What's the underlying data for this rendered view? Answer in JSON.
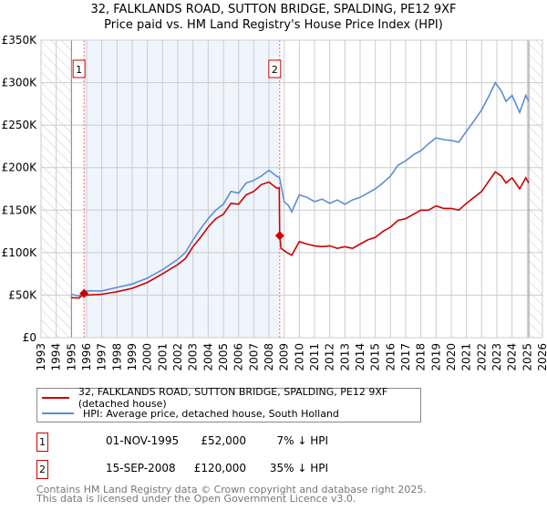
{
  "chart_data": {
    "type": "line",
    "title": "32, FALKLANDS ROAD, SUTTON BRIDGE, SPALDING, PE12 9XF",
    "subtitle": "Price paid vs. HM Land Registry's House Price Index (HPI)",
    "xlim": [
      1993,
      2026
    ],
    "ylim": [
      0,
      350000
    ],
    "x_ticks": [
      "1993",
      "1994",
      "1995",
      "1996",
      "1997",
      "1998",
      "1999",
      "2000",
      "2001",
      "2002",
      "2003",
      "2004",
      "2005",
      "2006",
      "2007",
      "2008",
      "2009",
      "2010",
      "2011",
      "2012",
      "2013",
      "2014",
      "2015",
      "2016",
      "2017",
      "2018",
      "2019",
      "2020",
      "2021",
      "2022",
      "2023",
      "2024",
      "2025",
      "2026"
    ],
    "y_ticks": [
      {
        "v": 0,
        "label": "£0"
      },
      {
        "v": 50000,
        "label": "£50K"
      },
      {
        "v": 100000,
        "label": "£100K"
      },
      {
        "v": 150000,
        "label": "£150K"
      },
      {
        "v": 200000,
        "label": "£200K"
      },
      {
        "v": 250000,
        "label": "£250K"
      },
      {
        "v": 300000,
        "label": "£300K"
      },
      {
        "v": 350000,
        "label": "£350K"
      }
    ],
    "grid": true,
    "hatched_ranges": [
      [
        1993,
        1995
      ],
      [
        2025.1,
        2026
      ]
    ],
    "shaded_range": [
      1995.83,
      2008.71
    ],
    "series": [
      {
        "name": "32, FALKLANDS ROAD, SUTTON BRIDGE, SPALDING, PE12 9XF (detached house)",
        "color": "#cc0000",
        "x": [
          1995,
          1995.5,
          1995.83,
          1996,
          1997,
          1998,
          1999,
          2000,
          2001,
          2002,
          2002.5,
          2003,
          2003.5,
          2004,
          2004.5,
          2005,
          2005.5,
          2006,
          2006.5,
          2007,
          2007.5,
          2008,
          2008.5,
          2008.68,
          2008.71,
          2008.8,
          2009.2,
          2009.5,
          2010,
          2010.5,
          2011,
          2011.5,
          2012,
          2012.5,
          2013,
          2013.5,
          2014,
          2014.5,
          2015,
          2015.5,
          2016,
          2016.5,
          2017,
          2017.5,
          2018,
          2018.5,
          2019,
          2019.5,
          2020,
          2020.5,
          2021,
          2021.5,
          2022,
          2022.5,
          2022.9,
          2023.3,
          2023.6,
          2024,
          2024.5,
          2024.9,
          2025.1
        ],
        "y": [
          47000,
          46500,
          52000,
          50000,
          51000,
          54000,
          58000,
          65000,
          75000,
          86000,
          93000,
          107000,
          118000,
          130000,
          140000,
          145000,
          158000,
          157000,
          168000,
          172000,
          180000,
          183000,
          176000,
          176000,
          120000,
          105000,
          100000,
          97000,
          113000,
          110000,
          108000,
          107000,
          108000,
          105000,
          107000,
          105000,
          110000,
          115000,
          118000,
          125000,
          130000,
          138000,
          140000,
          145000,
          150000,
          150000,
          155000,
          152000,
          152000,
          150000,
          158000,
          165000,
          172000,
          185000,
          195000,
          190000,
          182000,
          188000,
          175000,
          188000,
          182000
        ]
      },
      {
        "name": "HPI: Average price, detached house, South Holland",
        "color": "#5b8fd4",
        "x": [
          1995,
          1995.5,
          1996,
          1997,
          1998,
          1999,
          2000,
          2001,
          2002,
          2002.5,
          2003,
          2003.5,
          2004,
          2004.5,
          2005,
          2005.5,
          2006,
          2006.5,
          2007,
          2007.5,
          2008,
          2008.5,
          2008.7,
          2009,
          2009.3,
          2009.5,
          2010,
          2010.5,
          2011,
          2011.5,
          2012,
          2012.5,
          2013,
          2013.5,
          2014,
          2014.5,
          2015,
          2015.5,
          2016,
          2016.5,
          2017,
          2017.5,
          2018,
          2018.5,
          2019,
          2019.5,
          2020,
          2020.5,
          2021,
          2021.5,
          2022,
          2022.5,
          2022.9,
          2023.3,
          2023.6,
          2024,
          2024.5,
          2024.9,
          2025.1
        ],
        "y": [
          51000,
          49000,
          55000,
          55000,
          59000,
          63000,
          70000,
          80000,
          92000,
          100000,
          115000,
          128000,
          140000,
          150000,
          157000,
          172000,
          170000,
          182000,
          185000,
          190000,
          197000,
          190000,
          188000,
          160000,
          155000,
          148000,
          168000,
          165000,
          160000,
          163000,
          158000,
          162000,
          157000,
          162000,
          165000,
          170000,
          175000,
          182000,
          190000,
          203000,
          208000,
          215000,
          220000,
          228000,
          235000,
          233000,
          232000,
          230000,
          243000,
          255000,
          268000,
          285000,
          300000,
          290000,
          278000,
          285000,
          265000,
          285000,
          278000
        ]
      }
    ],
    "annotations": [
      {
        "label": "1",
        "x": 1995.83,
        "y": 52000
      },
      {
        "label": "2",
        "x": 2008.71,
        "y": 120000
      }
    ],
    "legend_position": "below"
  },
  "legend": [
    {
      "label": "32, FALKLANDS ROAD, SUTTON BRIDGE, SPALDING, PE12 9XF (detached house)",
      "color": "#cc0000"
    },
    {
      "label": "HPI: Average price, detached house, South Holland",
      "color": "#5b8fd4"
    }
  ],
  "transactions": [
    {
      "num": "1",
      "date": "01-NOV-1995",
      "price": "£52,000",
      "hpi": "7% ↓ HPI"
    },
    {
      "num": "2",
      "date": "15-SEP-2008",
      "price": "£120,000",
      "hpi": "35% ↓ HPI"
    }
  ],
  "footer": {
    "line1": "Contains HM Land Registry data © Crown copyright and database right 2025.",
    "line2": "This data is licensed under the Open Government Licence v3.0."
  }
}
